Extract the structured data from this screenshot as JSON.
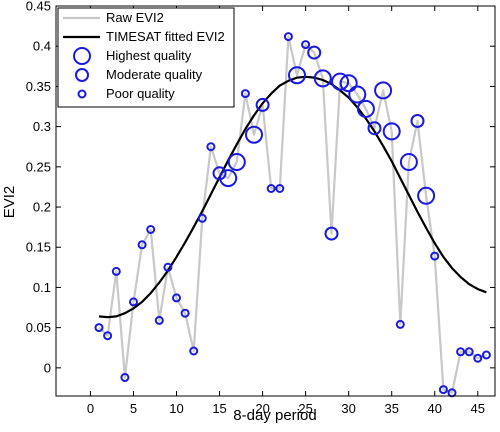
{
  "chart_data": {
    "type": "line",
    "xlabel": "8-day period",
    "ylabel": "EVI2",
    "xlim": [
      -4,
      47
    ],
    "ylim": [
      -0.035,
      0.45
    ],
    "xticks": [
      0,
      5,
      10,
      15,
      20,
      25,
      30,
      35,
      40,
      45
    ],
    "yticks": [
      0,
      0.05,
      0.1,
      0.15,
      0.2,
      0.25,
      0.3,
      0.35,
      0.4,
      0.45
    ],
    "ytick_labels": [
      "0",
      "0.05",
      "0.1",
      "0.15",
      "0.2",
      "0.25",
      "0.3",
      "0.35",
      "0.4",
      "0.45"
    ],
    "grid": false,
    "legend_position": "top-left",
    "legend": [
      "Raw EVI2",
      "TIMESAT fitted EVI2",
      "Highest quality",
      "Moderate quality",
      "Poor quality"
    ],
    "colors": {
      "raw": "#c8c8c8",
      "fitted": "#000000",
      "markers": "#1a1adf"
    },
    "raw_series": {
      "name": "Raw EVI2",
      "x": [
        1,
        2,
        3,
        4,
        5,
        6,
        7,
        8,
        9,
        10,
        11,
        12,
        13,
        14,
        15,
        16,
        17,
        18,
        19,
        20,
        21,
        22,
        23,
        24,
        25,
        26,
        27,
        28,
        29,
        30,
        31,
        32,
        33,
        34,
        35,
        36,
        37,
        38,
        39,
        40,
        41,
        42,
        43,
        44,
        45,
        46
      ],
      "y": [
        0.05,
        0.04,
        0.12,
        -0.012,
        0.082,
        0.153,
        0.172,
        0.059,
        0.125,
        0.087,
        0.068,
        0.021,
        0.186,
        0.275,
        0.242,
        0.236,
        0.256,
        0.341,
        0.29,
        0.327,
        0.223,
        0.223,
        0.412,
        0.364,
        0.402,
        0.392,
        0.36,
        0.167,
        0.356,
        0.354,
        0.34,
        0.322,
        0.298,
        0.345,
        0.294,
        0.054,
        0.256,
        0.307,
        0.214,
        0.139,
        -0.027,
        -0.031,
        0.02,
        0.02,
        0.012,
        0.016
      ]
    },
    "quality": [
      "poor",
      "poor",
      "poor",
      "poor",
      "poor",
      "poor",
      "poor",
      "poor",
      "poor",
      "poor",
      "poor",
      "poor",
      "poor",
      "poor",
      "moderate",
      "highest",
      "highest",
      "poor",
      "highest",
      "moderate",
      "poor",
      "poor",
      "poor",
      "highest",
      "poor",
      "moderate",
      "highest",
      "moderate",
      "highest",
      "highest",
      "highest",
      "highest",
      "moderate",
      "highest",
      "highest",
      "poor",
      "highest",
      "moderate",
      "highest",
      "poor",
      "poor",
      "poor",
      "poor",
      "poor",
      "poor",
      "poor"
    ],
    "fitted_series": {
      "name": "TIMESAT fitted EVI2",
      "x": [
        1,
        2,
        3,
        4,
        5,
        6,
        7,
        8,
        9,
        10,
        11,
        12,
        13,
        14,
        15,
        16,
        17,
        18,
        19,
        20,
        21,
        22,
        23,
        24,
        25,
        26,
        27,
        28,
        29,
        30,
        31,
        32,
        33,
        34,
        35,
        36,
        37,
        38,
        39,
        40,
        41,
        42,
        43,
        44,
        45,
        46
      ],
      "y": [
        0.064,
        0.063,
        0.064,
        0.068,
        0.074,
        0.082,
        0.093,
        0.106,
        0.121,
        0.138,
        0.156,
        0.175,
        0.195,
        0.216,
        0.237,
        0.258,
        0.278,
        0.297,
        0.314,
        0.329,
        0.341,
        0.351,
        0.357,
        0.361,
        0.362,
        0.361,
        0.358,
        0.353,
        0.345,
        0.336,
        0.324,
        0.31,
        0.294,
        0.276,
        0.257,
        0.236,
        0.215,
        0.194,
        0.174,
        0.155,
        0.138,
        0.124,
        0.113,
        0.104,
        0.098,
        0.094
      ]
    }
  }
}
